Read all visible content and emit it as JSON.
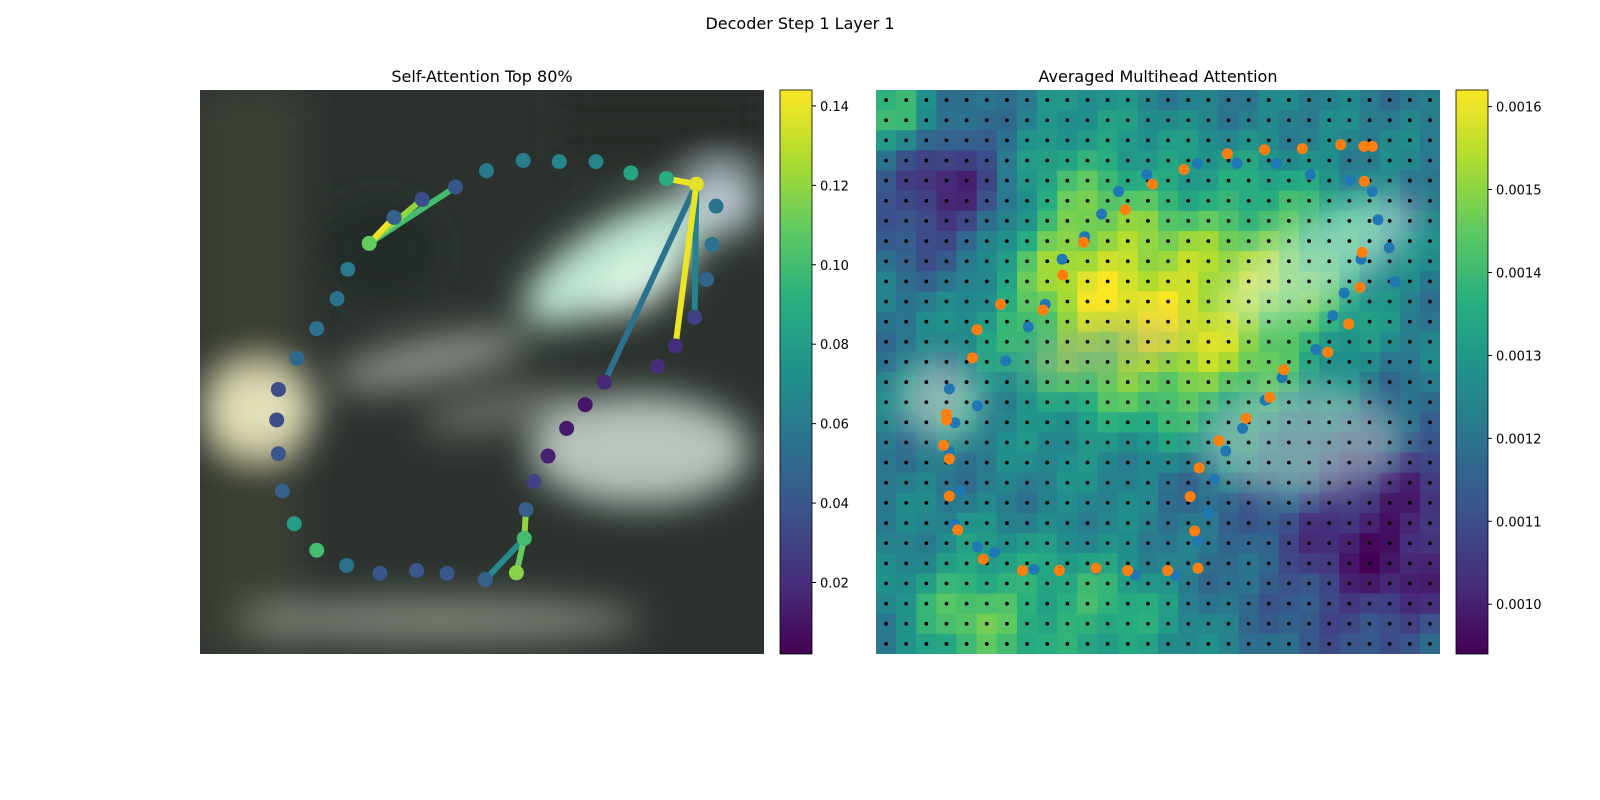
{
  "figure_title": "Decoder Step 1 Layer 1",
  "chart_data": [
    {
      "type": "scatter",
      "title": "Self-Attention Top 80%",
      "description_hidden": "",
      "xlim": [
        0,
        1
      ],
      "ylim": [
        0,
        1
      ],
      "axes_visible": false,
      "background": "blurred image",
      "colormap": "viridis",
      "colorbar": {
        "range": [
          0.002,
          0.144
        ],
        "ticks": [
          "0.02",
          "0.04",
          "0.06",
          "0.08",
          "0.10",
          "0.12",
          "0.14"
        ],
        "tick_values": [
          0.02,
          0.04,
          0.06,
          0.08,
          0.1,
          0.12,
          0.14
        ]
      },
      "points": [
        {
          "x": 0.3,
          "y": 0.728,
          "v": 0.11
        },
        {
          "x": 0.344,
          "y": 0.774,
          "v": 0.045
        },
        {
          "x": 0.394,
          "y": 0.806,
          "v": 0.035
        },
        {
          "x": 0.453,
          "y": 0.828,
          "v": 0.04
        },
        {
          "x": 0.508,
          "y": 0.857,
          "v": 0.06
        },
        {
          "x": 0.573,
          "y": 0.875,
          "v": 0.062
        },
        {
          "x": 0.637,
          "y": 0.873,
          "v": 0.066
        },
        {
          "x": 0.702,
          "y": 0.873,
          "v": 0.066
        },
        {
          "x": 0.764,
          "y": 0.853,
          "v": 0.085
        },
        {
          "x": 0.827,
          "y": 0.843,
          "v": 0.09
        },
        {
          "x": 0.88,
          "y": 0.833,
          "v": 0.138
        },
        {
          "x": 0.915,
          "y": 0.794,
          "v": 0.055
        },
        {
          "x": 0.908,
          "y": 0.726,
          "v": 0.055
        },
        {
          "x": 0.898,
          "y": 0.664,
          "v": 0.048
        },
        {
          "x": 0.877,
          "y": 0.597,
          "v": 0.03
        },
        {
          "x": 0.843,
          "y": 0.546,
          "v": 0.02
        },
        {
          "x": 0.811,
          "y": 0.51,
          "v": 0.02
        },
        {
          "x": 0.717,
          "y": 0.482,
          "v": 0.018
        },
        {
          "x": 0.683,
          "y": 0.442,
          "v": 0.01
        },
        {
          "x": 0.65,
          "y": 0.4,
          "v": 0.012
        },
        {
          "x": 0.617,
          "y": 0.351,
          "v": 0.015
        },
        {
          "x": 0.592,
          "y": 0.306,
          "v": 0.03
        },
        {
          "x": 0.578,
          "y": 0.256,
          "v": 0.045
        },
        {
          "x": 0.575,
          "y": 0.205,
          "v": 0.1
        },
        {
          "x": 0.561,
          "y": 0.144,
          "v": 0.118
        },
        {
          "x": 0.506,
          "y": 0.132,
          "v": 0.045
        },
        {
          "x": 0.438,
          "y": 0.143,
          "v": 0.04
        },
        {
          "x": 0.384,
          "y": 0.148,
          "v": 0.04
        },
        {
          "x": 0.319,
          "y": 0.143,
          "v": 0.04
        },
        {
          "x": 0.26,
          "y": 0.157,
          "v": 0.055
        },
        {
          "x": 0.207,
          "y": 0.184,
          "v": 0.1
        },
        {
          "x": 0.167,
          "y": 0.231,
          "v": 0.08
        },
        {
          "x": 0.146,
          "y": 0.289,
          "v": 0.045
        },
        {
          "x": 0.139,
          "y": 0.355,
          "v": 0.04
        },
        {
          "x": 0.136,
          "y": 0.415,
          "v": 0.035
        },
        {
          "x": 0.139,
          "y": 0.469,
          "v": 0.035
        },
        {
          "x": 0.172,
          "y": 0.524,
          "v": 0.05
        },
        {
          "x": 0.207,
          "y": 0.577,
          "v": 0.055
        },
        {
          "x": 0.243,
          "y": 0.63,
          "v": 0.055
        },
        {
          "x": 0.262,
          "y": 0.682,
          "v": 0.06
        }
      ],
      "edges": [
        {
          "from": 0,
          "to": 1,
          "v": 0.14
        },
        {
          "from": 0,
          "to": 2,
          "v": 0.12
        },
        {
          "from": 0,
          "to": 3,
          "v": 0.1
        },
        {
          "from": 10,
          "to": 9,
          "v": 0.14
        },
        {
          "from": 10,
          "to": 15,
          "v": 0.14
        },
        {
          "from": 10,
          "to": 17,
          "v": 0.055
        },
        {
          "from": 10,
          "to": 14,
          "v": 0.065
        },
        {
          "from": 22,
          "to": 23,
          "v": 0.12
        },
        {
          "from": 23,
          "to": 24,
          "v": 0.11
        },
        {
          "from": 23,
          "to": 25,
          "v": 0.07
        }
      ]
    },
    {
      "type": "heatmap",
      "title": "Averaged Multihead Attention",
      "xlim": [
        0,
        1
      ],
      "ylim": [
        0,
        1
      ],
      "axes_visible": false,
      "colormap": "viridis",
      "grid_size": 28,
      "colorbar": {
        "range": [
          0.00094,
          0.00162
        ],
        "ticks": [
          "0.0010",
          "0.0011",
          "0.0012",
          "0.0013",
          "0.0014",
          "0.0015",
          "0.0016"
        ],
        "tick_values": [
          0.001,
          0.0011,
          0.0012,
          0.0013,
          0.0014,
          0.0015,
          0.0016
        ]
      },
      "hotspots": [
        {
          "x": 0.57,
          "y": 0.58,
          "r": 0.16,
          "w": 0.00032
        },
        {
          "x": 0.35,
          "y": 0.63,
          "r": 0.12,
          "w": 0.00018
        },
        {
          "x": 0.3,
          "y": 0.82,
          "r": 0.12,
          "w": 0.00016
        },
        {
          "x": 0.17,
          "y": 0.07,
          "r": 0.08,
          "w": 0.00022
        },
        {
          "x": 0.4,
          "y": 0.07,
          "r": 0.1,
          "w": 0.00016
        },
        {
          "x": 0.75,
          "y": 0.72,
          "r": 0.1,
          "w": 0.00012
        },
        {
          "x": 0.04,
          "y": 0.95,
          "r": 0.05,
          "w": 0.00022
        },
        {
          "x": 0.15,
          "y": 0.82,
          "r": 0.1,
          "w": -0.00028
        },
        {
          "x": 0.9,
          "y": 0.2,
          "r": 0.14,
          "w": -0.00025
        },
        {
          "x": 0.55,
          "y": 0.3,
          "r": 0.1,
          "w": -8e-05
        }
      ],
      "series": [
        {
          "name": "",
          "color": "#1f77b4",
          "points": [
            [
              0.13,
              0.47
            ],
            [
              0.14,
              0.41
            ],
            [
              0.13,
              0.36
            ],
            [
              0.15,
              0.29
            ],
            [
              0.14,
              0.23
            ],
            [
              0.18,
              0.19
            ],
            [
              0.21,
              0.18
            ],
            [
              0.28,
              0.15
            ],
            [
              0.39,
              0.15
            ],
            [
              0.46,
              0.14
            ],
            [
              0.53,
              0.14
            ],
            [
              0.57,
              0.2
            ],
            [
              0.59,
              0.25
            ],
            [
              0.6,
              0.31
            ],
            [
              0.62,
              0.36
            ],
            [
              0.65,
              0.4
            ],
            [
              0.69,
              0.45
            ],
            [
              0.72,
              0.49
            ],
            [
              0.78,
              0.54
            ],
            [
              0.81,
              0.6
            ],
            [
              0.83,
              0.64
            ],
            [
              0.86,
              0.7
            ],
            [
              0.89,
              0.77
            ],
            [
              0.91,
              0.72
            ],
            [
              0.92,
              0.66
            ],
            [
              0.88,
              0.82
            ],
            [
              0.84,
              0.84
            ],
            [
              0.77,
              0.85
            ],
            [
              0.71,
              0.87
            ],
            [
              0.64,
              0.87
            ],
            [
              0.57,
              0.87
            ],
            [
              0.48,
              0.85
            ],
            [
              0.43,
              0.82
            ],
            [
              0.4,
              0.78
            ],
            [
              0.37,
              0.74
            ],
            [
              0.33,
              0.7
            ],
            [
              0.3,
              0.62
            ],
            [
              0.27,
              0.58
            ],
            [
              0.23,
              0.52
            ],
            [
              0.18,
              0.44
            ]
          ]
        },
        {
          "name": "",
          "color": "#ff7f0e",
          "points": [
            [
              0.125,
              0.415
            ],
            [
              0.13,
              0.346
            ],
            [
              0.13,
              0.28
            ],
            [
              0.145,
              0.22
            ],
            [
              0.19,
              0.168
            ],
            [
              0.26,
              0.148
            ],
            [
              0.325,
              0.148
            ],
            [
              0.39,
              0.152
            ],
            [
              0.446,
              0.148
            ],
            [
              0.517,
              0.148
            ],
            [
              0.571,
              0.152
            ],
            [
              0.565,
              0.218
            ],
            [
              0.557,
              0.279
            ],
            [
              0.573,
              0.33
            ],
            [
              0.608,
              0.378
            ],
            [
              0.656,
              0.418
            ],
            [
              0.698,
              0.455
            ],
            [
              0.723,
              0.504
            ],
            [
              0.801,
              0.535
            ],
            [
              0.838,
              0.585
            ],
            [
              0.858,
              0.65
            ],
            [
              0.862,
              0.712
            ],
            [
              0.866,
              0.838
            ],
            [
              0.88,
              0.9
            ],
            [
              0.865,
              0.9
            ],
            [
              0.824,
              0.903
            ],
            [
              0.756,
              0.896
            ],
            [
              0.689,
              0.894
            ],
            [
              0.623,
              0.887
            ],
            [
              0.546,
              0.859
            ],
            [
              0.49,
              0.833
            ],
            [
              0.442,
              0.788
            ],
            [
              0.368,
              0.73
            ],
            [
              0.331,
              0.672
            ],
            [
              0.296,
              0.61
            ],
            [
              0.221,
              0.62
            ],
            [
              0.179,
              0.575
            ],
            [
              0.171,
              0.525
            ],
            [
              0.125,
              0.425
            ],
            [
              0.12,
              0.37
            ]
          ]
        }
      ]
    }
  ]
}
